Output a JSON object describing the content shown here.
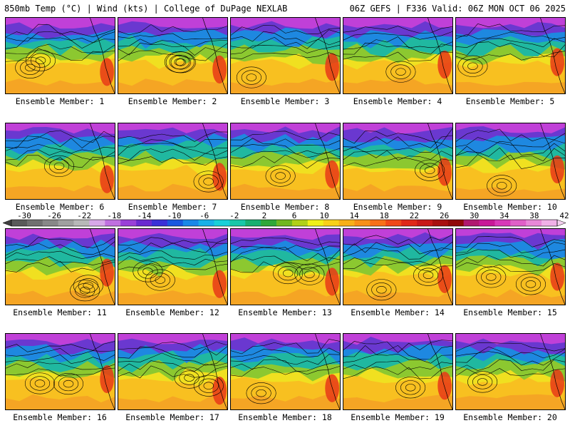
{
  "header": {
    "left": "850mb Temp (°C) | Wind (kts) | College of DuPage NEXLAB",
    "right": "06Z GEFS | F336 Valid: 06Z MON OCT 06 2025"
  },
  "panels": [
    {
      "member": 1,
      "label": "Ensemble Member: 1"
    },
    {
      "member": 2,
      "label": "Ensemble Member: 2"
    },
    {
      "member": 3,
      "label": "Ensemble Member: 3"
    },
    {
      "member": 4,
      "label": "Ensemble Member: 4"
    },
    {
      "member": 5,
      "label": "Ensemble Member: 5"
    },
    {
      "member": 6,
      "label": "Ensemble Member: 6"
    },
    {
      "member": 7,
      "label": "Ensemble Member: 7"
    },
    {
      "member": 8,
      "label": "Ensemble Member: 8"
    },
    {
      "member": 9,
      "label": "Ensemble Member: 9"
    },
    {
      "member": 10,
      "label": "Ensemble Member: 10"
    },
    {
      "member": 11,
      "label": "Ensemble Member: 11"
    },
    {
      "member": 12,
      "label": "Ensemble Member: 12"
    },
    {
      "member": 13,
      "label": "Ensemble Member: 13"
    },
    {
      "member": 14,
      "label": "Ensemble Member: 14"
    },
    {
      "member": 15,
      "label": "Ensemble Member: 15"
    },
    {
      "member": 16,
      "label": "Ensemble Member: 16"
    },
    {
      "member": 17,
      "label": "Ensemble Member: 17"
    },
    {
      "member": 18,
      "label": "Ensemble Member: 18"
    },
    {
      "member": 19,
      "label": "Ensemble Member: 19"
    },
    {
      "member": 20,
      "label": "Ensemble Member: 20"
    }
  ],
  "colorbar": {
    "tick_labels": [
      "-30",
      "-26",
      "-22",
      "-18",
      "-14",
      "-10",
      "-6",
      "-2",
      "2",
      "6",
      "10",
      "14",
      "18",
      "22",
      "26",
      "30",
      "34",
      "38",
      "42"
    ],
    "colors": [
      "#5a5a5a",
      "#707070",
      "#888888",
      "#a0a0a0",
      "#b8b8b8",
      "#d8a8e8",
      "#c070e0",
      "#9a40d8",
      "#6a2ad0",
      "#3a30d8",
      "#1a58e0",
      "#1a88e8",
      "#18b0e8",
      "#18d0d8",
      "#18c8a8",
      "#18b070",
      "#30a838",
      "#70b820",
      "#b0d018",
      "#f0f018",
      "#f8d018",
      "#f8b018",
      "#f89018",
      "#f87018",
      "#f04818",
      "#e02818",
      "#c81818",
      "#a81010",
      "#900808",
      "#b01870",
      "#c81898",
      "#d838b8",
      "#e060c8",
      "#e888d8",
      "#f0b0e8"
    ]
  }
}
